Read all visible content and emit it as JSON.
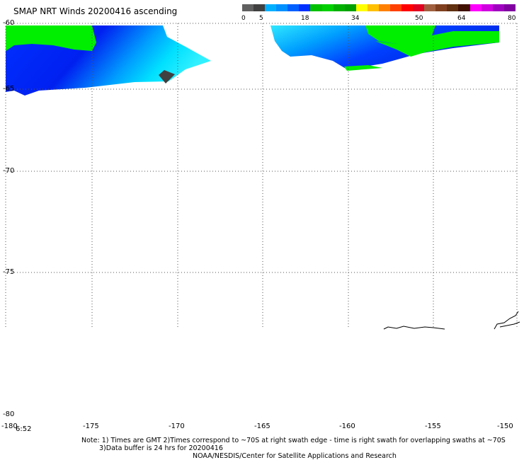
{
  "title": "SMAP NRT Winds 20200416 ascending",
  "colorbar": {
    "labels": [
      "0",
      "5",
      "18",
      "34",
      "50",
      "64",
      "80"
    ],
    "colors": [
      "#606060",
      "#404040",
      "#00b0ff",
      "#0090ff",
      "#0060ff",
      "#0030ff",
      "#00c000",
      "#00d000",
      "#00b000",
      "#00a000",
      "#ffff00",
      "#ffc000",
      "#ff8000",
      "#ff4000",
      "#ff0000",
      "#e00020",
      "#a06040",
      "#804020",
      "#603010",
      "#401000",
      "#ff00ff",
      "#d000e0",
      "#a000c0",
      "#8000a0"
    ]
  },
  "colors": {
    "cyan": "#00e0ff",
    "blue": "#0040ff",
    "deep_blue": "#0010e0",
    "green": "#00ee00",
    "land": "#404040"
  },
  "axes": {
    "lat_labels": [
      "-60",
      "-65",
      "-70",
      "-75",
      "-80"
    ],
    "lon_labels": [
      "-180",
      "-175",
      "-170",
      "-165",
      "-160",
      "-155",
      "-150"
    ],
    "time_label": "6:52"
  },
  "notes": {
    "line1": "Note: 1) Times are GMT 2)Times correspond to ~70S at right swath edge - time is right swath for overlapping swaths at ~70S",
    "line2": "3)Data buffer is 24 hrs for 20200416",
    "line3": "NOAA/NESDIS/Center for Satellite Applications and Research"
  }
}
